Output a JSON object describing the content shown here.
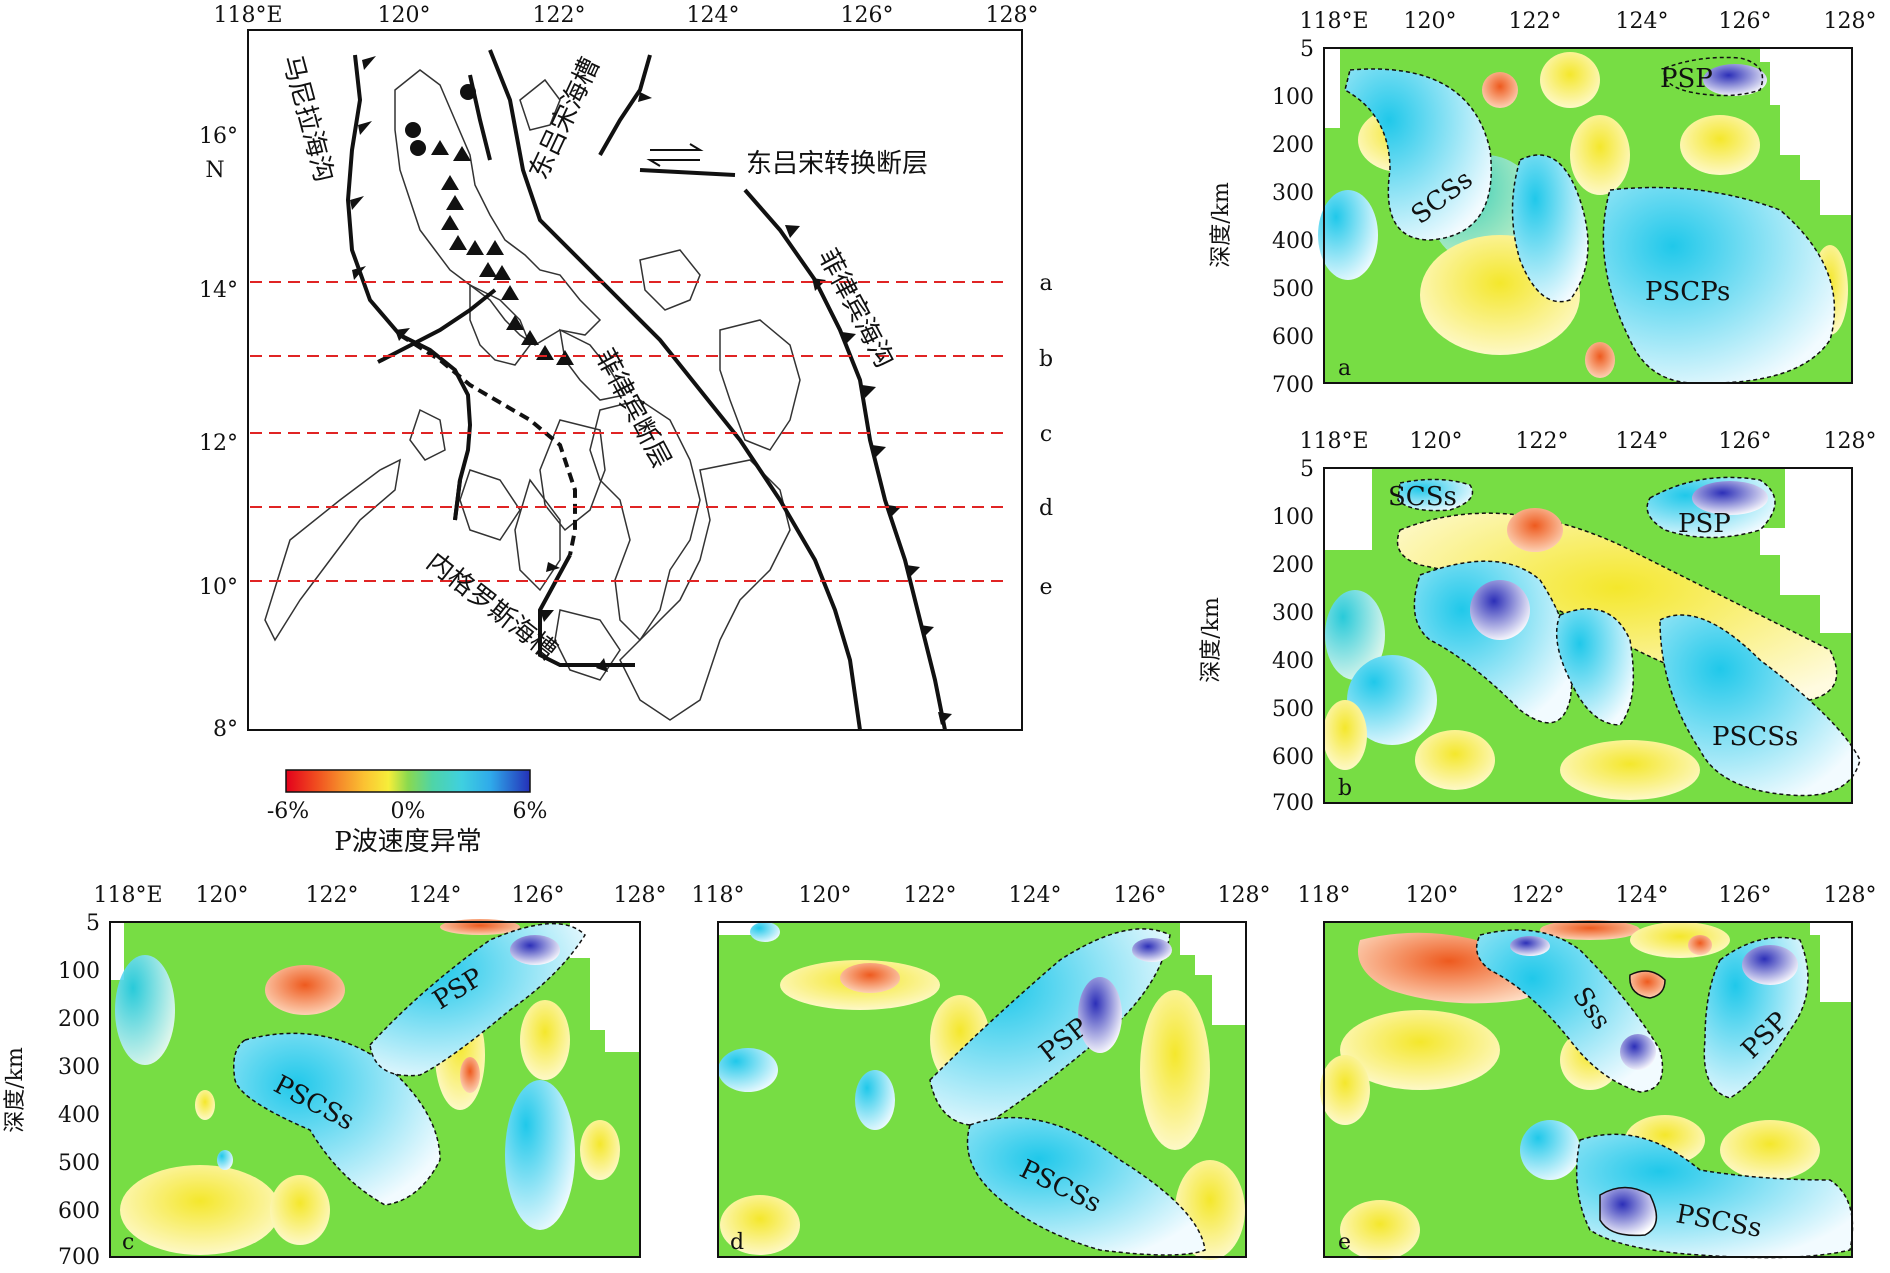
{
  "map": {
    "lon_ticks": [
      "118°E",
      "120°",
      "122°",
      "124°",
      "126°",
      "128°"
    ],
    "lat_ticks": [
      "16°",
      "14°",
      "12°",
      "10°",
      "8°"
    ],
    "lat_axis_unit": "N",
    "features": {
      "manila_trench": "马尼拉海沟",
      "east_luzon_trough": "东吕宋海槽",
      "east_luzon_transform": "东吕宋转换断层",
      "philippine_trench": "菲律宾海沟",
      "philippine_fault": "菲律宾断层",
      "negros_trough": "内格罗斯海槽"
    },
    "profile_labels": [
      "a",
      "b",
      "c",
      "d",
      "e"
    ],
    "colorbar": {
      "min_label": "-6%",
      "mid_label": "0%",
      "max_label": "6%",
      "title": "P波速度异常",
      "colors": [
        "#e3001b",
        "#f04a1f",
        "#f58a2a",
        "#fbc232",
        "#f6ee3a",
        "#b6e04a",
        "#6fd85b",
        "#4fd4a7",
        "#3fd0e0",
        "#2fa9ea",
        "#2d6fe0",
        "#2430b8"
      ]
    }
  },
  "profiles": [
    {
      "id": "a",
      "lon_ticks": [
        "118°E",
        "120°",
        "122°",
        "124°",
        "126°",
        "128°"
      ],
      "depth_ticks": [
        "5",
        "100",
        "200",
        "300",
        "400",
        "500",
        "600",
        "700"
      ],
      "ylabel": "深度/km",
      "labels": [
        "PSP",
        "SCSs",
        "PSCPs"
      ]
    },
    {
      "id": "b",
      "lon_ticks": [
        "118°E",
        "120°",
        "122°",
        "124°",
        "126°",
        "128°"
      ],
      "depth_ticks": [
        "5",
        "100",
        "200",
        "300",
        "400",
        "500",
        "600",
        "700"
      ],
      "ylabel": "深度/km",
      "labels": [
        "SCSs",
        "PSP",
        "PSCSs"
      ]
    },
    {
      "id": "c",
      "lon_ticks": [
        "118°E",
        "120°",
        "122°",
        "124°",
        "126°",
        "128°"
      ],
      "depth_ticks": [
        "5",
        "100",
        "200",
        "300",
        "400",
        "500",
        "600",
        "700"
      ],
      "ylabel": "深度/km",
      "labels": [
        "PSP",
        "PSCSs"
      ]
    },
    {
      "id": "d",
      "lon_ticks": [
        "118°",
        "120°",
        "122°",
        "124°",
        "126°",
        "128°"
      ],
      "labels": [
        "PSP",
        "PSCSs"
      ]
    },
    {
      "id": "e",
      "lon_ticks": [
        "118°",
        "120°",
        "122°",
        "124°",
        "126°",
        "128°"
      ],
      "labels": [
        "Sss",
        "PSP",
        "PSCSs"
      ]
    }
  ],
  "colors": {
    "green": "#77dd44",
    "yellow": "#f7ec3a",
    "cyan": "#38d8ee",
    "blue": "#2f58d8",
    "red": "#ea5a25"
  }
}
